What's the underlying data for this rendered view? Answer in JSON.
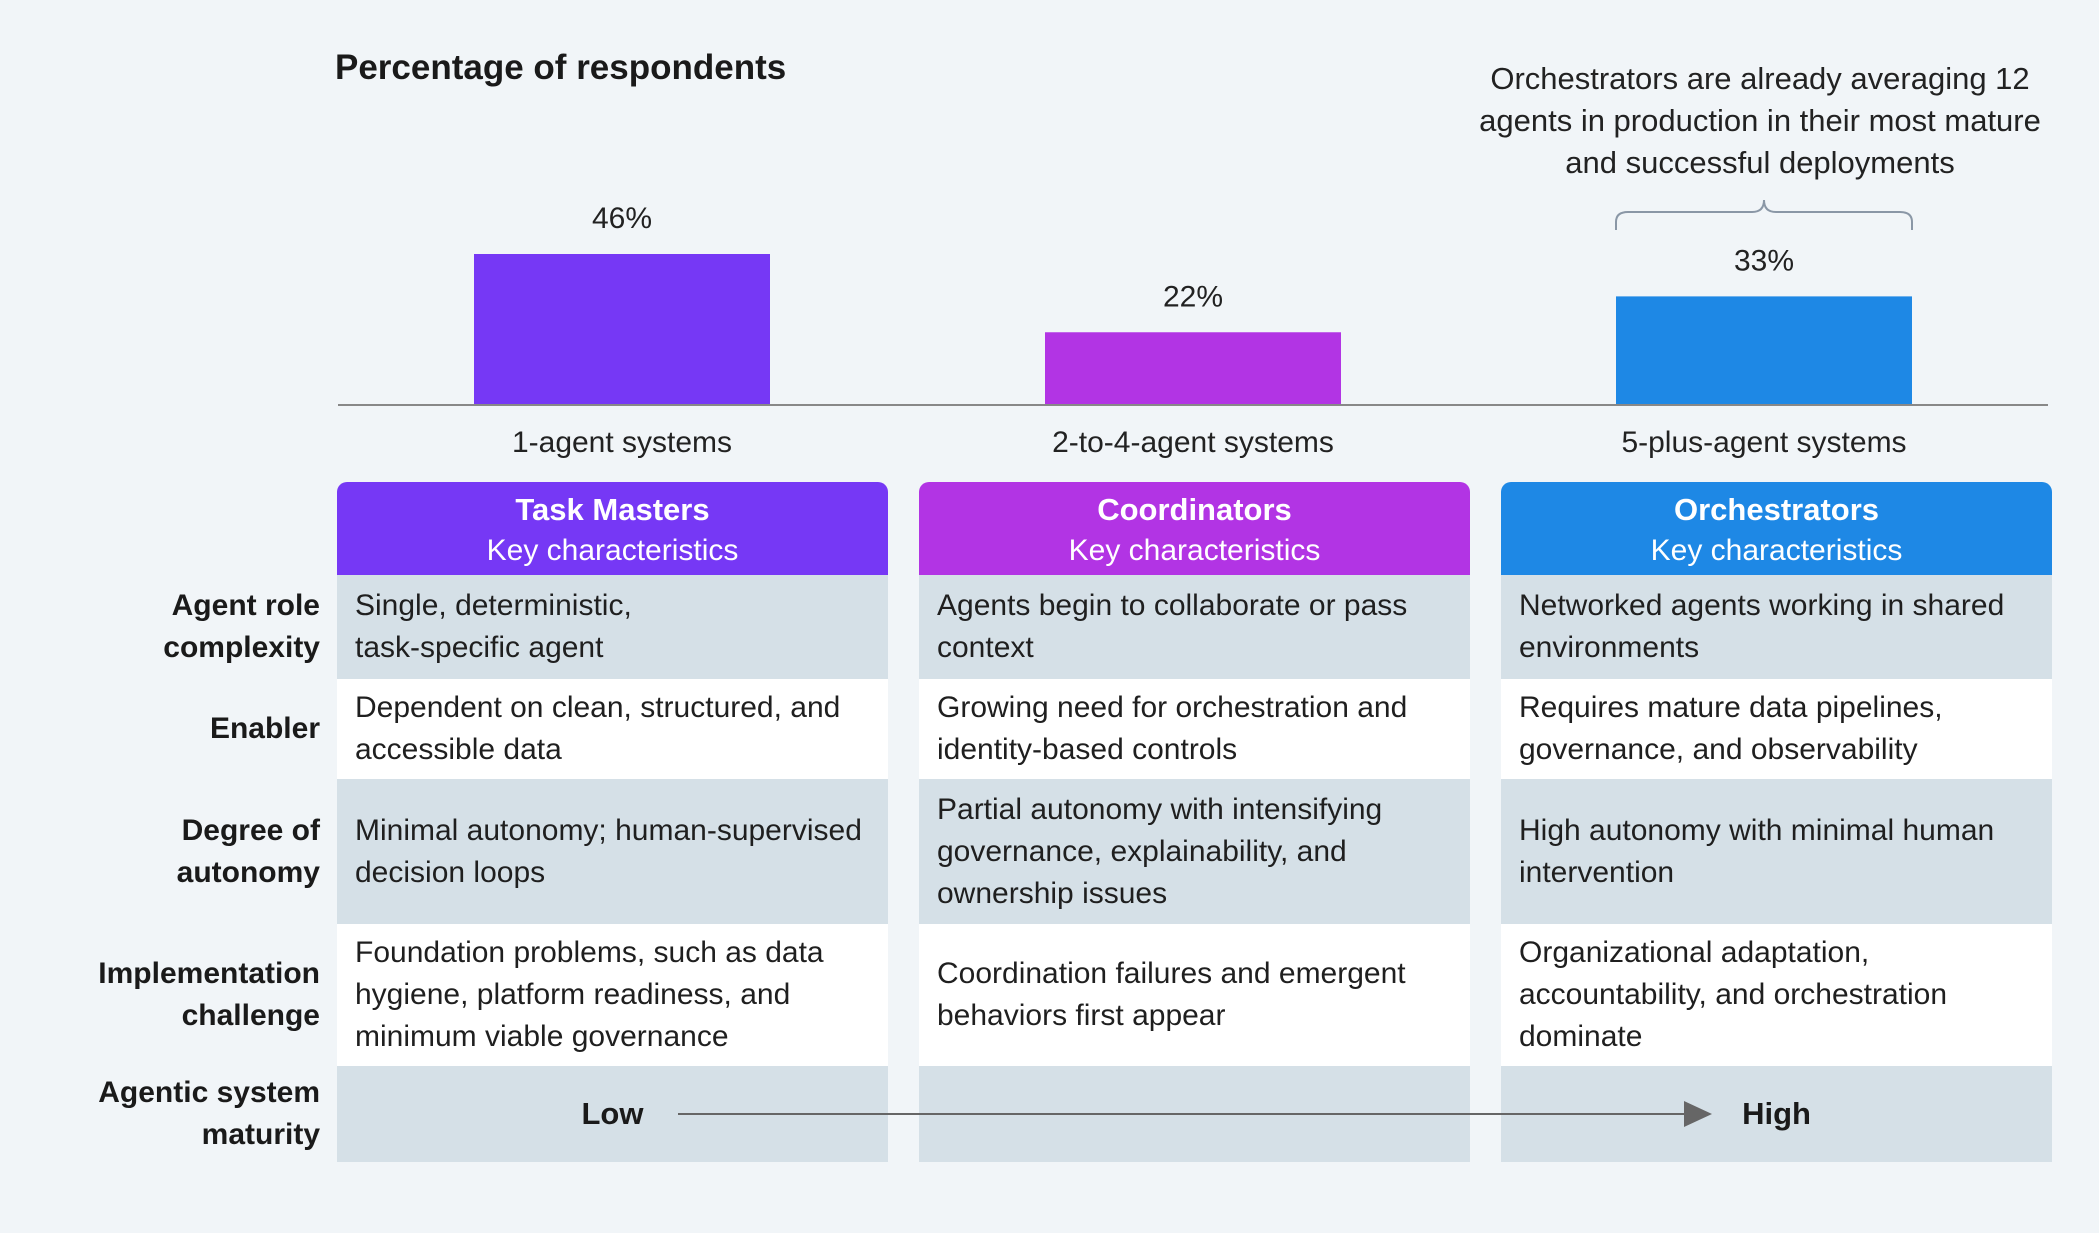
{
  "chart_data": {
    "type": "bar",
    "title": "Percentage of respondents",
    "categories": [
      "1-agent systems",
      "2-to-4-agent systems",
      "5-plus-agent systems"
    ],
    "values": [
      46,
      22,
      33
    ],
    "value_labels": [
      "46%",
      "22%",
      "33%"
    ],
    "colors": [
      "#7638f5",
      "#b234e4",
      "#1e88e5"
    ],
    "ylim": [
      0,
      50
    ],
    "grid": false,
    "annotation": "Orchestrators are already averaging 12 agents in production in their most mature and successful deployments"
  },
  "table": {
    "columns": [
      {
        "name": "Task Masters",
        "subtitle": "Key characteristics",
        "color": "#7638f5"
      },
      {
        "name": "Coordinators",
        "subtitle": "Key characteristics",
        "color": "#b234e4"
      },
      {
        "name": "Orchestrators",
        "subtitle": "Key characteristics",
        "color": "#1e88e5"
      }
    ],
    "rows": [
      {
        "label_lines": [
          "Agent role",
          "complexity"
        ],
        "cells": [
          "Single, deterministic,\ntask-specific agent",
          "Agents begin to collaborate or pass\ncontext",
          "Networked agents working in shared\nenvironments"
        ]
      },
      {
        "label_lines": [
          "Enabler"
        ],
        "cells": [
          "Dependent on clean, structured, and\naccessible data",
          "Growing need for orchestration and\nidentity-based controls",
          "Requires mature data pipelines,\ngovernance, and observability"
        ]
      },
      {
        "label_lines": [
          "Degree of",
          "autonomy"
        ],
        "cells": [
          "Minimal autonomy; human-supervised\ndecision loops",
          "Partial autonomy with intensifying\ngovernance, explainability, and\nownership issues",
          "High autonomy with minimal human\nintervention"
        ]
      },
      {
        "label_lines": [
          "Implementation",
          "challenge"
        ],
        "cells": [
          "Foundation problems, such as data\nhygiene, platform readiness, and\nminimum viable governance",
          "Coordination failures and emergent\nbehaviors first appear",
          "Organizational adaptation,\naccountability, and orchestration\ndominate"
        ]
      }
    ],
    "maturity": {
      "label_lines": [
        "Agentic system",
        "maturity"
      ],
      "low": "Low",
      "high": "High"
    }
  }
}
